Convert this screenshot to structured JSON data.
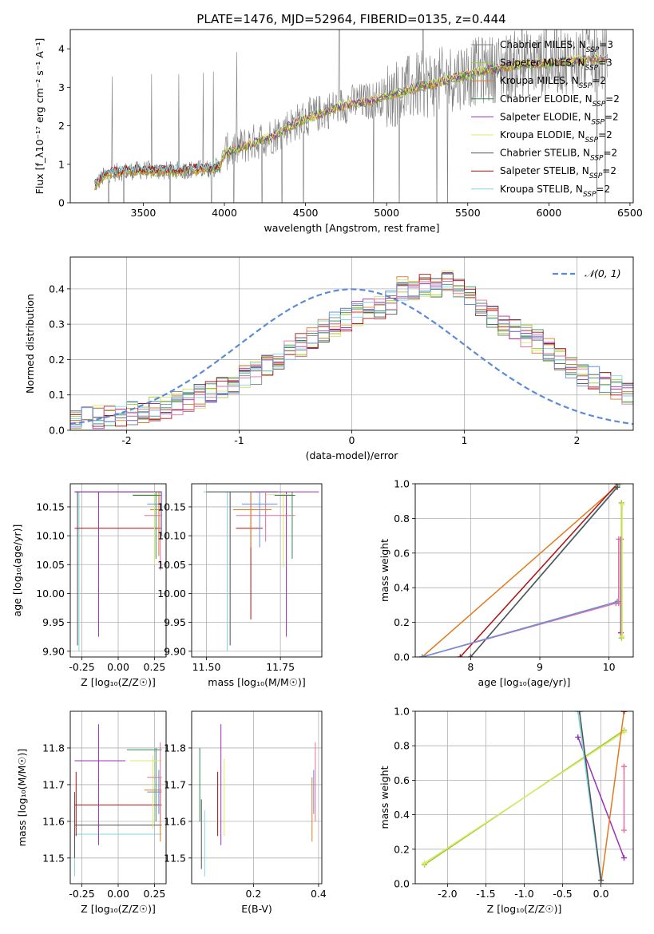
{
  "figure_title": "PLATE=1476, MJD=52964, FIBERID=0135, z=0.444",
  "colors": {
    "Chabrier MILES": "#808080",
    "Salpeter MILES": "#9acd32",
    "Kroupa MILES": "#e07b20",
    "Chabrier ELODIE": "#2e8b57",
    "Salpeter ELODIE": "#9b30b8",
    "Kroupa ELODIE": "#dde86a",
    "Chabrier STELIB": "#505050",
    "Salpeter STELIB": "#b01010",
    "Kroupa STELIB": "#7fd6e0",
    "hist_extra_1": "#e070a0",
    "hist_extra_2": "#6a8fd8",
    "gaussian": "#5b8bd6"
  },
  "chart_data": [
    {
      "id": "spectrum",
      "type": "line",
      "title": "PLATE=1476, MJD=52964, FIBERID=0135, z=0.444",
      "xlabel": "wavelength [Angstrom, rest frame]",
      "ylabel": "Flux [f_λ10⁻¹⁷ erg cm⁻² s⁻¹ A⁻¹]",
      "xlim": [
        3050,
        6520
      ],
      "ylim": [
        0,
        4.5
      ],
      "xticks": [
        3500,
        4000,
        4500,
        5000,
        5500,
        6000,
        6500
      ],
      "yticks": [
        0,
        1,
        2,
        3,
        4
      ],
      "grid": false,
      "legend_position": "top-right",
      "legend": [
        {
          "label": "Chabrier MILES, N",
          "sub": "SSP",
          "suffix": "=3",
          "color_key": "Chabrier MILES"
        },
        {
          "label": "Salpeter MILES, N",
          "sub": "SSP",
          "suffix": "=3",
          "color_key": "Salpeter MILES"
        },
        {
          "label": "Kroupa MILES, N",
          "sub": "SSP",
          "suffix": "=2",
          "color_key": "Kroupa MILES"
        },
        {
          "label": "Chabrier ELODIE, N",
          "sub": "SSP",
          "suffix": "=2",
          "color_key": "Chabrier ELODIE"
        },
        {
          "label": "Salpeter ELODIE, N",
          "sub": "SSP",
          "suffix": "=2",
          "color_key": "Salpeter ELODIE"
        },
        {
          "label": "Kroupa ELODIE, N",
          "sub": "SSP",
          "suffix": "=2",
          "color_key": "Kroupa ELODIE"
        },
        {
          "label": "Chabrier STELIB, N",
          "sub": "SSP",
          "suffix": "=2",
          "color_key": "Chabrier STELIB"
        },
        {
          "label": "Salpeter STELIB, N",
          "sub": "SSP",
          "suffix": "=2",
          "color_key": "Salpeter STELIB"
        },
        {
          "label": "Kroupa STELIB, N",
          "sub": "SSP",
          "suffix": "=2",
          "color_key": "Kroupa STELIB"
        }
      ],
      "model_trend": {
        "x": [
          3200,
          3260,
          3300,
          3400,
          3500,
          3600,
          3700,
          3800,
          3900,
          3970,
          4000,
          4100,
          4200,
          4300,
          4400,
          4500,
          4600,
          4700,
          4800,
          4900,
          5000,
          5100,
          5200,
          5300,
          5400,
          5500,
          5600,
          5700,
          5800,
          5900,
          6000,
          6100,
          6200,
          6300,
          6360
        ],
        "y": [
          0.45,
          0.7,
          0.78,
          0.82,
          0.85,
          0.83,
          0.84,
          0.86,
          0.88,
          0.95,
          1.3,
          1.45,
          1.6,
          1.75,
          2.0,
          2.2,
          2.35,
          2.5,
          2.6,
          2.65,
          2.8,
          2.9,
          3.05,
          3.1,
          3.25,
          3.35,
          3.45,
          3.5,
          3.6,
          3.62,
          3.65,
          3.7,
          3.72,
          3.75,
          3.75
        ]
      },
      "stelib_range": [
        3200,
        3970
      ],
      "data_range": [
        3200,
        6360
      ]
    },
    {
      "id": "residuals",
      "type": "step",
      "xlabel": "(data-model)/error",
      "ylabel": "Normed distribution",
      "xlim": [
        -2.5,
        2.5
      ],
      "ylim": [
        0,
        0.49
      ],
      "xticks": [
        -2,
        -1,
        0,
        1,
        2
      ],
      "yticks": [
        0.0,
        0.1,
        0.2,
        0.3,
        0.4
      ],
      "grid": true,
      "legend_position": "top-right",
      "gaussian_label": "𝒩(0, 1)",
      "bin_edges_start": -2.5,
      "bin_width": 0.1,
      "hist_color_keys": [
        "Chabrier MILES",
        "Salpeter MILES",
        "Kroupa MILES",
        "Chabrier ELODIE",
        "Salpeter ELODIE",
        "Kroupa ELODIE",
        "Chabrier STELIB",
        "Salpeter STELIB",
        "Kroupa STELIB",
        "hist_extra_1",
        "hist_extra_2"
      ],
      "base_values": [
        0.028,
        0.032,
        0.036,
        0.04,
        0.045,
        0.05,
        0.055,
        0.06,
        0.068,
        0.075,
        0.085,
        0.095,
        0.108,
        0.12,
        0.135,
        0.15,
        0.165,
        0.18,
        0.2,
        0.22,
        0.24,
        0.26,
        0.28,
        0.3,
        0.31,
        0.33,
        0.34,
        0.35,
        0.36,
        0.4,
        0.4,
        0.41,
        0.41,
        0.42,
        0.4,
        0.38,
        0.35,
        0.32,
        0.3,
        0.28,
        0.27,
        0.25,
        0.23,
        0.2,
        0.18,
        0.16,
        0.15,
        0.13,
        0.12,
        0.1,
        0.09,
        0.08,
        0.07,
        0.06,
        0.05,
        0.045,
        0.04,
        0.045,
        0.05,
        0.055
      ]
    },
    {
      "id": "age_vs_Z",
      "type": "errorbar",
      "xlabel": "Z [log₁₀(Z/Z☉)]",
      "ylabel": "age  [log₁₀(age/yr)]",
      "xlim": [
        -0.33,
        0.33
      ],
      "ylim": [
        9.89,
        10.19
      ],
      "xticks": [
        -0.25,
        0.0,
        0.25
      ],
      "yticks": [
        9.9,
        9.95,
        10.0,
        10.05,
        10.1,
        10.15
      ],
      "grid": true,
      "points": [
        {
          "c": "Kroupa STELIB",
          "x": -0.27,
          "y": 10.176,
          "xl": -0.3,
          "xh": 0.3,
          "yl": 9.9,
          "yh": 10.176
        },
        {
          "c": "Chabrier STELIB",
          "x": -0.28,
          "y": 10.176,
          "xl": -0.3,
          "xh": 0.3,
          "yl": 9.91,
          "yh": 10.176
        },
        {
          "c": "Salpeter STELIB",
          "x": -0.3,
          "y": 10.113,
          "xl": -0.3,
          "xh": 0.3,
          "yl": 10.113,
          "yh": 10.113
        },
        {
          "c": "Salpeter ELODIE",
          "x": -0.135,
          "y": 10.176,
          "xl": -0.3,
          "xh": 0.3,
          "yl": 9.925,
          "yh": 10.176
        },
        {
          "c": "Kroupa MILES",
          "x": 0.28,
          "y": 10.145,
          "xl": 0.22,
          "xh": 0.3,
          "yl": 10.065,
          "yh": 10.176
        },
        {
          "c": "Kroupa ELODIE",
          "x": 0.25,
          "y": 10.171,
          "xl": 0.1,
          "xh": 0.28,
          "yl": 10.05,
          "yh": 10.176
        },
        {
          "c": "Chabrier ELODIE",
          "x": 0.26,
          "y": 10.17,
          "xl": 0.1,
          "xh": 0.3,
          "yl": 10.06,
          "yh": 10.176
        },
        {
          "c": "hist_extra_1",
          "x": 0.29,
          "y": 10.135,
          "xl": 0.18,
          "xh": 0.3,
          "yl": 10.04,
          "yh": 10.176
        },
        {
          "c": "hist_extra_2",
          "x": 0.3,
          "y": 10.155,
          "xl": 0.2,
          "xh": 0.3,
          "yl": 10.1,
          "yh": 10.176
        }
      ]
    },
    {
      "id": "age_vs_mass",
      "type": "errorbar",
      "xlabel": "mass [log₁₀(M/M☉)]",
      "ylabel": "",
      "xlim": [
        11.45,
        11.89
      ],
      "ylim": [
        9.89,
        10.19
      ],
      "xticks": [
        11.5,
        11.75
      ],
      "yticks": [
        9.9,
        9.95,
        10.0,
        10.05,
        10.1,
        10.15
      ],
      "grid": true,
      "points": [
        {
          "c": "Kroupa STELIB",
          "x": 11.57,
          "y": 10.176,
          "xl": 11.49,
          "xh": 11.75,
          "yl": 9.9,
          "yh": 10.176
        },
        {
          "c": "Chabrier STELIB",
          "x": 11.58,
          "y": 10.176,
          "xl": 11.5,
          "xh": 11.74,
          "yl": 9.91,
          "yh": 10.176
        },
        {
          "c": "Salpeter STELIB",
          "x": 11.65,
          "y": 10.113,
          "xl": 11.6,
          "xh": 11.69,
          "yl": 9.955,
          "yh": 10.176
        },
        {
          "c": "Salpeter ELODIE",
          "x": 11.77,
          "y": 10.176,
          "xl": 11.66,
          "xh": 11.88,
          "yl": 9.925,
          "yh": 10.176
        },
        {
          "c": "Kroupa MILES",
          "x": 11.65,
          "y": 10.145,
          "xl": 11.59,
          "xh": 11.72,
          "yl": 10.08,
          "yh": 10.176
        },
        {
          "c": "Kroupa ELODIE",
          "x": 11.76,
          "y": 10.171,
          "xl": 11.7,
          "xh": 11.79,
          "yl": 10.045,
          "yh": 10.176
        },
        {
          "c": "Chabrier ELODIE",
          "x": 11.79,
          "y": 10.17,
          "xl": 11.73,
          "xh": 11.8,
          "yl": 10.06,
          "yh": 10.176
        },
        {
          "c": "hist_extra_1",
          "x": 11.7,
          "y": 10.135,
          "xl": 11.6,
          "xh": 11.8,
          "yl": 10.09,
          "yh": 10.176
        },
        {
          "c": "hist_extra_2",
          "x": 11.68,
          "y": 10.155,
          "xl": 11.62,
          "xh": 11.74,
          "yl": 10.08,
          "yh": 10.176
        }
      ]
    },
    {
      "id": "weight_vs_age",
      "type": "line",
      "xlabel": "age  [log₁₀(age/yr)]",
      "ylabel": "mass weight",
      "xlim": [
        7.2,
        10.35
      ],
      "ylim": [
        0,
        1
      ],
      "xticks": [
        8,
        9,
        10
      ],
      "yticks": [
        0.0,
        0.2,
        0.4,
        0.6,
        0.8,
        1.0
      ],
      "grid": true,
      "series": [
        {
          "c": "Kroupa MILES",
          "x": [
            7.3,
            10.15
          ],
          "y": [
            0.0,
            1.0
          ]
        },
        {
          "c": "Salpeter STELIB",
          "x": [
            7.85,
            10.12
          ],
          "y": [
            0.0,
            1.0
          ]
        },
        {
          "c": "Kroupa STELIB",
          "x": [
            8.0,
            10.13
          ],
          "y": [
            0.0,
            0.99
          ]
        },
        {
          "c": "Chabrier STELIB",
          "x": [
            8.0,
            10.12
          ],
          "y": [
            0.0,
            0.98
          ]
        },
        {
          "c": "hist_extra_1",
          "x": [
            7.3,
            10.1
          ],
          "y": [
            0.0,
            0.31
          ]
        },
        {
          "c": "hist_extra_2",
          "x": [
            7.3,
            10.12
          ],
          "y": [
            0.0,
            0.32
          ]
        },
        {
          "c": "Salpeter ELODIE",
          "x": [
            10.17,
            10.17
          ],
          "y": [
            0.68,
            0.14
          ]
        },
        {
          "c": "Salpeter MILES",
          "x": [
            10.18,
            10.18
          ],
          "y": [
            0.89,
            0.11
          ]
        },
        {
          "c": "Kroupa ELODIE",
          "x": [
            10.19,
            10.19
          ],
          "y": [
            0.88,
            0.12
          ]
        },
        {
          "c": "hist_extra_1",
          "x": [
            10.14,
            10.14
          ],
          "y": [
            0.68,
            0.31
          ]
        }
      ]
    },
    {
      "id": "mass_vs_Z",
      "type": "errorbar",
      "xlabel": "Z [log₁₀(Z/Z☉)]",
      "ylabel": "mass [log₁₀(M/M☉)]",
      "xlim": [
        -0.33,
        0.33
      ],
      "ylim": [
        11.43,
        11.9
      ],
      "xticks": [
        -0.25,
        0.0,
        0.25
      ],
      "yticks": [
        11.5,
        11.6,
        11.7,
        11.8
      ],
      "grid": true,
      "points": [
        {
          "c": "Kroupa STELIB",
          "x": -0.3,
          "y": 11.565,
          "xl": -0.3,
          "xh": 0.3,
          "yl": 11.45,
          "yh": 11.63
        },
        {
          "c": "Chabrier STELIB",
          "x": -0.3,
          "y": 11.59,
          "xl": -0.3,
          "xh": 0.3,
          "yl": 11.5,
          "yh": 11.68
        },
        {
          "c": "Salpeter STELIB",
          "x": -0.29,
          "y": 11.645,
          "xl": -0.3,
          "xh": 0.3,
          "yl": 11.56,
          "yh": 11.735
        },
        {
          "c": "Salpeter ELODIE",
          "x": -0.135,
          "y": 11.765,
          "xl": -0.3,
          "xh": 0.05,
          "yl": 11.535,
          "yh": 11.865
        },
        {
          "c": "Chabrier ELODIE",
          "x": 0.26,
          "y": 11.795,
          "xl": 0.06,
          "xh": 0.3,
          "yl": 11.6,
          "yh": 11.8
        },
        {
          "c": "Kroupa ELODIE",
          "x": 0.24,
          "y": 11.765,
          "xl": 0.08,
          "xh": 0.3,
          "yl": 11.58,
          "yh": 11.78
        },
        {
          "c": "Kroupa MILES",
          "x": 0.29,
          "y": 11.685,
          "xl": 0.18,
          "xh": 0.3,
          "yl": 11.545,
          "yh": 11.72
        },
        {
          "c": "hist_extra_1",
          "x": 0.29,
          "y": 11.72,
          "xl": 0.2,
          "xh": 0.3,
          "yl": 11.6,
          "yh": 11.815
        },
        {
          "c": "hist_extra_2",
          "x": 0.28,
          "y": 11.68,
          "xl": 0.2,
          "xh": 0.3,
          "yl": 11.62,
          "yh": 11.74
        }
      ]
    },
    {
      "id": "mass_vs_ebv",
      "type": "errorbar",
      "xlabel": "E(B-V)",
      "ylabel": "",
      "xlim": [
        0.01,
        0.41
      ],
      "ylim": [
        11.43,
        11.9
      ],
      "xticks": [
        0.2,
        0.4
      ],
      "yticks": [
        11.5,
        11.6,
        11.7,
        11.8
      ],
      "grid": true,
      "points": [
        {
          "c": "Kroupa STELIB",
          "x": 0.05,
          "y": 11.565,
          "xl": 0.05,
          "xh": 0.05,
          "yl": 11.45,
          "yh": 11.63
        },
        {
          "c": "Chabrier STELIB",
          "x": 0.04,
          "y": 11.59,
          "xl": 0.04,
          "xh": 0.04,
          "yl": 11.47,
          "yh": 11.66
        },
        {
          "c": "Chabrier ELODIE",
          "x": 0.035,
          "y": 11.7,
          "xl": 0.035,
          "xh": 0.035,
          "yl": 11.6,
          "yh": 11.8
        },
        {
          "c": "Salpeter STELIB",
          "x": 0.09,
          "y": 11.645,
          "xl": 0.09,
          "xh": 0.09,
          "yl": 11.56,
          "yh": 11.735
        },
        {
          "c": "Salpeter ELODIE",
          "x": 0.1,
          "y": 11.7,
          "xl": 0.1,
          "xh": 0.1,
          "yl": 11.535,
          "yh": 11.865
        },
        {
          "c": "Kroupa ELODIE",
          "x": 0.11,
          "y": 11.68,
          "xl": 0.11,
          "xh": 0.11,
          "yl": 11.56,
          "yh": 11.77
        },
        {
          "c": "Kroupa MILES",
          "x": 0.38,
          "y": 11.63,
          "xl": 0.38,
          "xh": 0.38,
          "yl": 11.545,
          "yh": 11.72
        },
        {
          "c": "hist_extra_1",
          "x": 0.39,
          "y": 11.72,
          "xl": 0.39,
          "xh": 0.39,
          "yl": 11.6,
          "yh": 11.815
        },
        {
          "c": "hist_extra_2",
          "x": 0.385,
          "y": 11.68,
          "xl": 0.385,
          "xh": 0.385,
          "yl": 11.62,
          "yh": 11.74
        }
      ]
    },
    {
      "id": "weight_vs_Z",
      "type": "line",
      "xlabel": "Z [log₁₀(Z/Z☉)]",
      "ylabel": "mass weight",
      "xlim": [
        -2.42,
        0.42
      ],
      "ylim": [
        0,
        1
      ],
      "xticks": [
        -2.0,
        -1.5,
        -1.0,
        -0.5,
        0.0
      ],
      "yticks": [
        0.0,
        0.2,
        0.4,
        0.6,
        0.8,
        1.0
      ],
      "grid": true,
      "series": [
        {
          "c": "Salpeter MILES",
          "x": [
            -2.3,
            0.3
          ],
          "y": [
            0.11,
            0.89
          ]
        },
        {
          "c": "Kroupa ELODIE",
          "x": [
            -2.3,
            0.3
          ],
          "y": [
            0.12,
            0.88
          ]
        },
        {
          "c": "Salpeter ELODIE",
          "x": [
            -0.3,
            0.3
          ],
          "y": [
            0.85,
            0.15
          ]
        },
        {
          "c": "Kroupa MILES",
          "x": [
            0.0,
            0.3
          ],
          "y": [
            0.0,
            1.0
          ]
        },
        {
          "c": "Kroupa STELIB",
          "x": [
            -0.3,
            0.0
          ],
          "y": [
            1.0,
            0.0
          ]
        },
        {
          "c": "Chabrier STELIB",
          "x": [
            -0.28,
            0.0
          ],
          "y": [
            1.0,
            0.02
          ]
        },
        {
          "c": "hist_extra_1",
          "x": [
            0.3,
            0.3
          ],
          "y": [
            0.68,
            0.31
          ]
        },
        {
          "c": "Salpeter STELIB",
          "x": [
            0.3,
            0.3
          ],
          "y": [
            1.0,
            1.0
          ]
        }
      ]
    }
  ]
}
